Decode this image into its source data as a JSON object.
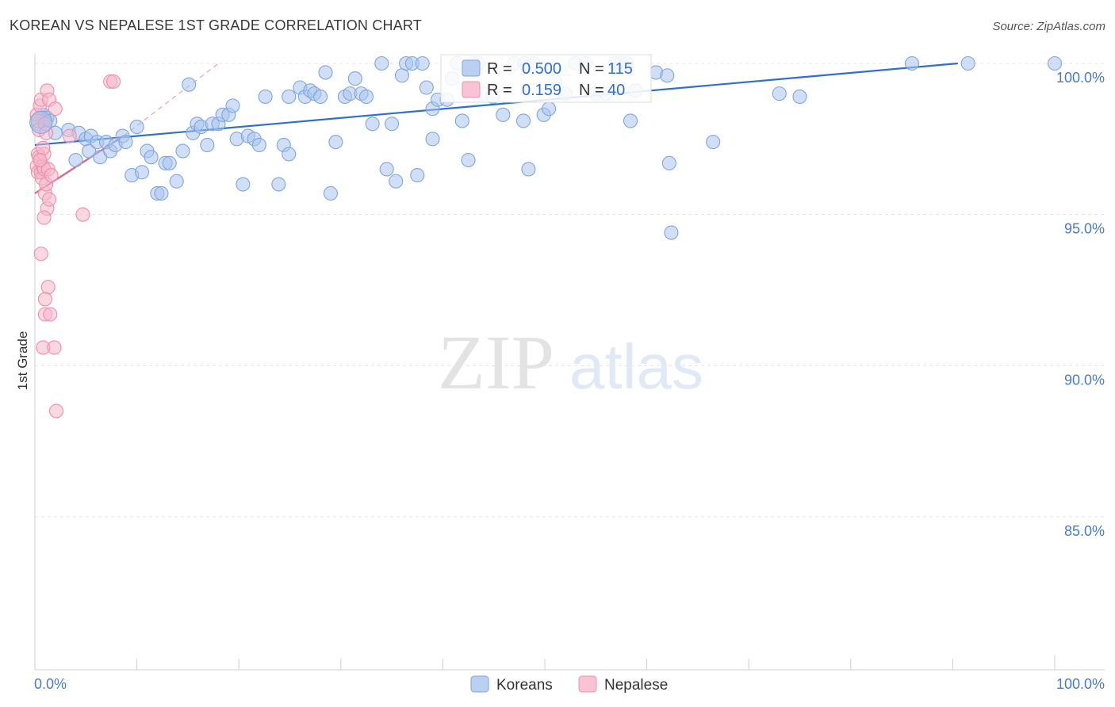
{
  "title": "KOREAN VS NEPALESE 1ST GRADE CORRELATION CHART",
  "source": "Source: ZipAtlas.com",
  "watermark": {
    "zip": "ZIP",
    "atlas": "atlas"
  },
  "chart_data": {
    "type": "scatter",
    "xlabel": "",
    "ylabel": "1st Grade",
    "xlim": [
      0,
      100
    ],
    "ylim": [
      80.6,
      100.8
    ],
    "x_tick_labels": {
      "left": "0.0%",
      "right": "100.0%"
    },
    "y_ticks": [
      {
        "value": 100,
        "label": "100.0%"
      },
      {
        "value": 95,
        "label": "95.0%"
      },
      {
        "value": 90,
        "label": "90.0%"
      },
      {
        "value": 85,
        "label": "85.0%"
      }
    ],
    "legend_stats": [
      {
        "r_label": "R =",
        "r_value": "0.500",
        "n_label": "N =",
        "n_value": "115"
      },
      {
        "r_label": "R =",
        "r_value": "0.159",
        "n_label": "N =",
        "n_value": "40"
      }
    ],
    "series": [
      {
        "name": "Koreans",
        "color": "#a9c4ee",
        "edge": "#7fa6e0",
        "trend": {
          "x0": 0,
          "y0": 97.3,
          "x1": 90.5,
          "y1": 100.0,
          "color": "#2e6fd1"
        },
        "points": [
          [
            0.3,
            98.0
          ],
          [
            0.8,
            98.3
          ],
          [
            1.0,
            98.1
          ],
          [
            1.2,
            98.2
          ],
          [
            1.5,
            98.1
          ],
          [
            2.0,
            97.7
          ],
          [
            3.3,
            97.8
          ],
          [
            4.3,
            97.7
          ],
          [
            5.0,
            97.5
          ],
          [
            5.5,
            97.6
          ],
          [
            4.0,
            96.8
          ],
          [
            5.3,
            97.1
          ],
          [
            6.1,
            97.4
          ],
          [
            6.4,
            96.9
          ],
          [
            7.0,
            97.4
          ],
          [
            7.4,
            97.1
          ],
          [
            7.9,
            97.3
          ],
          [
            8.6,
            97.6
          ],
          [
            8.9,
            97.4
          ],
          [
            10.0,
            97.9
          ],
          [
            9.5,
            96.3
          ],
          [
            10.5,
            96.4
          ],
          [
            11.0,
            97.1
          ],
          [
            11.4,
            96.9
          ],
          [
            12.0,
            95.7
          ],
          [
            12.4,
            95.7
          ],
          [
            12.8,
            96.7
          ],
          [
            13.2,
            96.7
          ],
          [
            13.9,
            96.1
          ],
          [
            14.5,
            97.1
          ],
          [
            15.1,
            99.3
          ],
          [
            15.5,
            97.7
          ],
          [
            15.9,
            98.0
          ],
          [
            16.3,
            97.9
          ],
          [
            16.9,
            97.3
          ],
          [
            17.4,
            98.0
          ],
          [
            18.0,
            98.0
          ],
          [
            18.4,
            98.3
          ],
          [
            19.0,
            98.3
          ],
          [
            19.4,
            98.6
          ],
          [
            19.8,
            97.5
          ],
          [
            20.4,
            96.0
          ],
          [
            20.9,
            97.6
          ],
          [
            21.5,
            97.5
          ],
          [
            22.0,
            97.3
          ],
          [
            22.6,
            98.9
          ],
          [
            23.9,
            96.0
          ],
          [
            24.4,
            97.3
          ],
          [
            24.9,
            97.0
          ],
          [
            24.9,
            98.9
          ],
          [
            26.0,
            99.2
          ],
          [
            26.5,
            98.9
          ],
          [
            27.0,
            99.1
          ],
          [
            27.4,
            99.0
          ],
          [
            28.0,
            98.9
          ],
          [
            29.0,
            95.7
          ],
          [
            28.5,
            99.7
          ],
          [
            29.5,
            97.4
          ],
          [
            30.4,
            98.9
          ],
          [
            30.9,
            99.0
          ],
          [
            31.4,
            99.5
          ],
          [
            32.0,
            99.0
          ],
          [
            32.5,
            98.9
          ],
          [
            33.1,
            98.0
          ],
          [
            34.0,
            100.0
          ],
          [
            34.5,
            96.5
          ],
          [
            35.0,
            98.0
          ],
          [
            35.4,
            96.1
          ],
          [
            36.0,
            99.6
          ],
          [
            36.4,
            100.0
          ],
          [
            37.0,
            100.0
          ],
          [
            37.5,
            96.3
          ],
          [
            38.0,
            100.0
          ],
          [
            38.4,
            99.2
          ],
          [
            39.0,
            98.5
          ],
          [
            39.0,
            97.5
          ],
          [
            39.5,
            98.8
          ],
          [
            40.4,
            98.8
          ],
          [
            40.9,
            99.5
          ],
          [
            41.4,
            100.0
          ],
          [
            41.9,
            98.1
          ],
          [
            42.5,
            96.8
          ],
          [
            43.0,
            100.0
          ],
          [
            43.5,
            100.0
          ],
          [
            44.0,
            99.0
          ],
          [
            44.9,
            98.9
          ],
          [
            45.9,
            98.3
          ],
          [
            47.0,
            100.0
          ],
          [
            47.9,
            98.1
          ],
          [
            48.0,
            100.0
          ],
          [
            48.4,
            96.5
          ],
          [
            48.9,
            100.0
          ],
          [
            49.9,
            98.3
          ],
          [
            50.4,
            98.5
          ],
          [
            51.0,
            99.4
          ],
          [
            52.0,
            99.0
          ],
          [
            53.0,
            100.0
          ],
          [
            54.0,
            100.0
          ],
          [
            55.0,
            99.0
          ],
          [
            56.0,
            99.0
          ],
          [
            56.9,
            100.0
          ],
          [
            57.5,
            100.0
          ],
          [
            58.0,
            100.0
          ],
          [
            58.4,
            98.1
          ],
          [
            58.9,
            99.1
          ],
          [
            60.9,
            99.7
          ],
          [
            62.0,
            99.6
          ],
          [
            62.2,
            96.7
          ],
          [
            62.4,
            94.4
          ],
          [
            66.5,
            97.4
          ],
          [
            73.0,
            99.0
          ],
          [
            75.0,
            98.9
          ],
          [
            86.0,
            100.0
          ],
          [
            91.5,
            100.0
          ],
          [
            100.0,
            100.0
          ]
        ]
      },
      {
        "name": "Nepalese",
        "color": "#f6b8cb",
        "edge": "#ee8fac",
        "trend": {
          "x0": 0,
          "y0": 95.7,
          "x1": 8.7,
          "y1": 97.6,
          "color": "#e0608a"
        },
        "trend_ext": {
          "x0": 8.7,
          "y0": 97.6,
          "x1": 18.0,
          "y1": 100.0,
          "color": "#eaa0b8"
        },
        "points": [
          [
            0.2,
            98.3
          ],
          [
            0.3,
            98.1
          ],
          [
            0.4,
            97.8
          ],
          [
            0.3,
            97.0
          ],
          [
            0.2,
            96.6
          ],
          [
            0.3,
            96.4
          ],
          [
            0.4,
            96.9
          ],
          [
            0.5,
            98.6
          ],
          [
            0.6,
            98.8
          ],
          [
            0.6,
            96.4
          ],
          [
            0.7,
            96.2
          ],
          [
            0.8,
            96.6
          ],
          [
            0.9,
            96.5
          ],
          [
            0.9,
            97.0
          ],
          [
            1.0,
            98.0
          ],
          [
            1.0,
            95.7
          ],
          [
            1.1,
            96.0
          ],
          [
            1.2,
            95.2
          ],
          [
            1.3,
            96.5
          ],
          [
            1.4,
            95.5
          ],
          [
            1.2,
            99.1
          ],
          [
            1.4,
            98.8
          ],
          [
            1.1,
            97.7
          ],
          [
            0.9,
            94.9
          ],
          [
            2.0,
            98.5
          ],
          [
            0.6,
            93.7
          ],
          [
            1.3,
            92.6
          ],
          [
            1.0,
            92.2
          ],
          [
            1.0,
            91.7
          ],
          [
            1.5,
            91.7
          ],
          [
            0.8,
            90.6
          ],
          [
            1.9,
            90.6
          ],
          [
            2.1,
            88.5
          ],
          [
            4.7,
            95.0
          ],
          [
            7.4,
            99.4
          ],
          [
            7.7,
            99.4
          ],
          [
            0.8,
            97.2
          ],
          [
            0.5,
            96.8
          ],
          [
            1.6,
            96.3
          ],
          [
            3.4,
            97.6
          ]
        ]
      }
    ]
  }
}
